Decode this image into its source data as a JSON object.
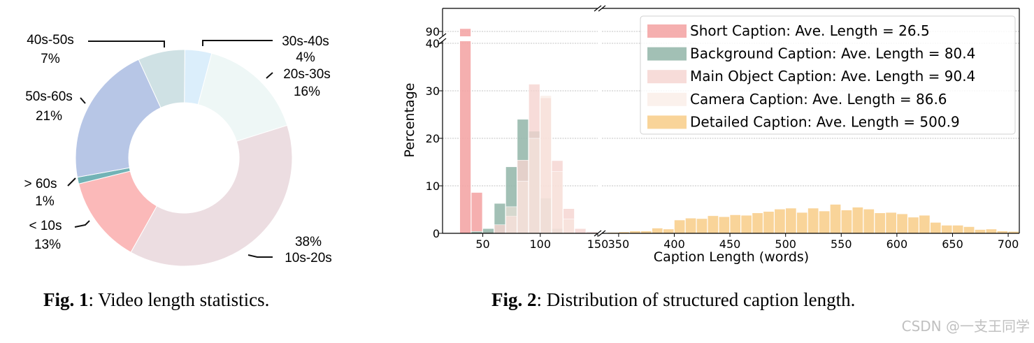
{
  "fig1": {
    "caption_bold": "Fig. 1",
    "caption_rest": ": Video length statistics.",
    "chart_data": {
      "type": "pie",
      "style": "donut",
      "slices": [
        {
          "label": "30s-40s",
          "pct_text": "4%",
          "value": 4,
          "color": "#dbeefb"
        },
        {
          "label": "20s-30s",
          "pct_text": "16%",
          "value": 16,
          "color": "#eef7f6"
        },
        {
          "label": "10s-20s",
          "pct_text": "38%",
          "value": 38,
          "color": "#ecdde1"
        },
        {
          "label": "< 10s",
          "pct_text": "13%",
          "value": 13,
          "color": "#fbb9b9"
        },
        {
          "label": "> 60s",
          "pct_text": "1%",
          "value": 1,
          "color": "#72b3b6"
        },
        {
          "label": "50s-60s",
          "pct_text": "21%",
          "value": 21,
          "color": "#b7c6e6"
        },
        {
          "label": "40s-50s",
          "pct_text": "7%",
          "value": 7,
          "color": "#cfe1e4"
        }
      ]
    }
  },
  "fig2": {
    "caption_bold": "Fig. 2",
    "caption_rest": ": Distribution of structured caption length.",
    "chart_data": {
      "type": "bar",
      "subtype": "histogram",
      "xlabel": "Caption Length (words)",
      "ylabel": "Percentage",
      "broken_x_axis": true,
      "broken_y_axis": true,
      "x_ranges": [
        [
          15,
          150
        ],
        [
          335,
          710
        ]
      ],
      "x_ticks_left": [
        50,
        100,
        150
      ],
      "x_ticks_right": [
        350,
        400,
        450,
        500,
        550,
        600,
        650,
        700
      ],
      "y_ticks": [
        0,
        10,
        20,
        30,
        40
      ],
      "y_top_tick": 90,
      "grid": true,
      "legend_position": "top-right",
      "series": [
        {
          "name": "Short Caption: Ave. Length = 26.5",
          "color": "#f4a6a6",
          "opacity": 0.9,
          "bins": [
            [
              30,
              92
            ],
            [
              40,
              8.6
            ],
            [
              50,
              0.4
            ]
          ],
          "bin_width": 10
        },
        {
          "name": "Background Caption: Ave. Length = 80.4",
          "color": "#98b9ad",
          "opacity": 0.9,
          "bins": [
            [
              40,
              0.4
            ],
            [
              50,
              1
            ],
            [
              60,
              6.3
            ],
            [
              70,
              14
            ],
            [
              80,
              24
            ],
            [
              90,
              21.5
            ],
            [
              100,
              7.4
            ],
            [
              110,
              1
            ]
          ],
          "bin_width": 10
        },
        {
          "name": "Main Object Caption: Ave. Length = 90.4",
          "color": "#f5d3d0",
          "opacity": 0.8,
          "bins": [
            [
              60,
              1.8
            ],
            [
              70,
              3.6
            ],
            [
              80,
              15.4
            ],
            [
              90,
              31.4
            ],
            [
              100,
              28.5
            ],
            [
              110,
              15.3
            ],
            [
              120,
              5.2
            ],
            [
              130,
              1
            ],
            [
              140,
              0.3
            ]
          ],
          "bin_width": 10
        },
        {
          "name": "Camera Caption: Ave. Length = 86.6",
          "color": "#f9e7df",
          "opacity": 0.6,
          "bins": [
            [
              70,
              5.6
            ],
            [
              80,
              11
            ],
            [
              90,
              20
            ],
            [
              100,
              29
            ],
            [
              110,
              13
            ],
            [
              120,
              3
            ]
          ],
          "bin_width": 10
        },
        {
          "name": "Detailed Caption: Ave. Length = 500.9",
          "color": "#f7c97f",
          "opacity": 0.8,
          "bins": [
            [
              340,
              0.2
            ],
            [
              350,
              0.3
            ],
            [
              360,
              0.5
            ],
            [
              370,
              0.5
            ],
            [
              380,
              1.1
            ],
            [
              390,
              0.9
            ],
            [
              400,
              2.8
            ],
            [
              410,
              3.2
            ],
            [
              420,
              3.1
            ],
            [
              430,
              3.7
            ],
            [
              440,
              3.5
            ],
            [
              450,
              3.9
            ],
            [
              460,
              3.8
            ],
            [
              470,
              4.3
            ],
            [
              480,
              4.6
            ],
            [
              490,
              5.1
            ],
            [
              500,
              5.3
            ],
            [
              510,
              4.4
            ],
            [
              520,
              5.3
            ],
            [
              530,
              4.7
            ],
            [
              540,
              6.1
            ],
            [
              550,
              4.9
            ],
            [
              560,
              5.5
            ],
            [
              570,
              5.1
            ],
            [
              580,
              4.3
            ],
            [
              590,
              4.4
            ],
            [
              600,
              4.1
            ],
            [
              610,
              3.4
            ],
            [
              620,
              3.8
            ],
            [
              630,
              2.3
            ],
            [
              640,
              1.7
            ],
            [
              650,
              1.7
            ],
            [
              660,
              1.4
            ],
            [
              670,
              0.8
            ],
            [
              680,
              0.9
            ],
            [
              690,
              0.5
            ],
            [
              700,
              0.4
            ]
          ],
          "bin_width": 10
        }
      ]
    }
  },
  "watermark": "CSDN @一支王同学"
}
